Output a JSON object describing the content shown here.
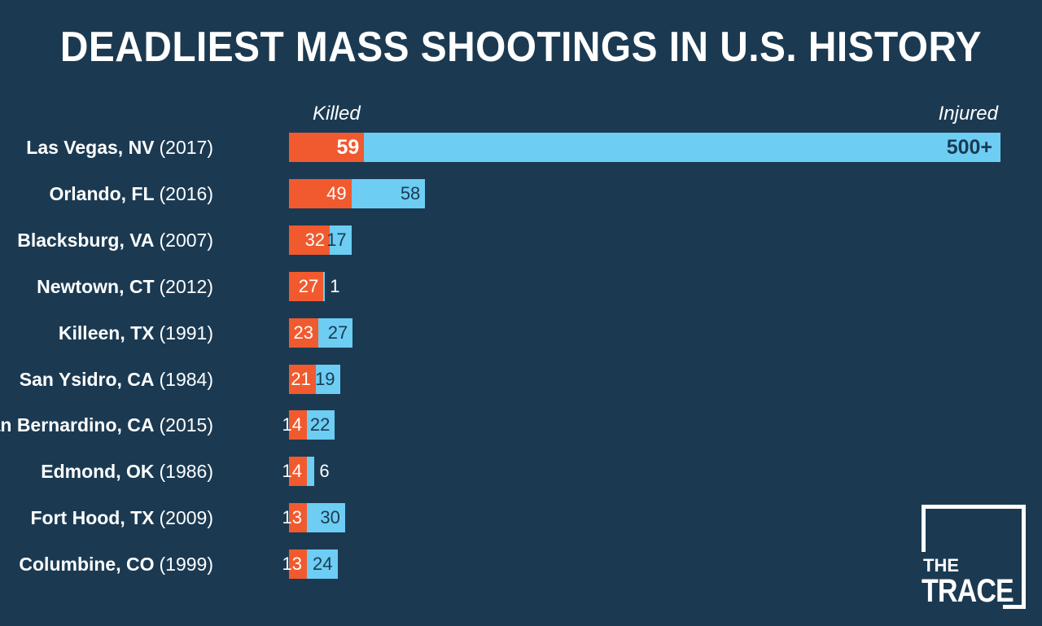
{
  "chart_data": {
    "type": "bar",
    "title": "DEADLIEST MASS SHOOTINGS IN U.S. HISTORY",
    "legend": {
      "killed": "Killed",
      "injured": "Injured"
    },
    "colors": {
      "killed": "#f15a2e",
      "injured": "#6dcdf3",
      "background": "#1b3a52"
    },
    "categories": [
      {
        "city": "Las Vegas, NV",
        "year": "(2017)"
      },
      {
        "city": "Orlando, FL",
        "year": "(2016)"
      },
      {
        "city": "Blacksburg, VA",
        "year": "(2007)"
      },
      {
        "city": "Newtown, CT",
        "year": "(2012)"
      },
      {
        "city": "Killeen, TX",
        "year": "(1991)"
      },
      {
        "city": "San Ysidro, CA",
        "year": "(1984)"
      },
      {
        "city": "San Bernardino, CA",
        "year": "(2015)"
      },
      {
        "city": "Edmond, OK",
        "year": "(1986)"
      },
      {
        "city": "Fort Hood, TX",
        "year": "(2009)"
      },
      {
        "city": "Columbine, CO",
        "year": "(1999)"
      }
    ],
    "series": [
      {
        "name": "Killed",
        "values": [
          59,
          49,
          32,
          27,
          23,
          21,
          14,
          14,
          13,
          13
        ],
        "labels": [
          "59",
          "49",
          "32",
          "27",
          "23",
          "21",
          "14",
          "14",
          "13",
          "13"
        ]
      },
      {
        "name": "Injured",
        "values": [
          500,
          58,
          17,
          1,
          27,
          19,
          22,
          6,
          30,
          24
        ],
        "labels": [
          "500+",
          "58",
          "17",
          "1",
          "27",
          "19",
          "22",
          "6",
          "30",
          "24"
        ]
      }
    ],
    "stacked": true,
    "orientation": "horizontal"
  },
  "logo": {
    "line1": "THE",
    "line2": "TRACE"
  }
}
